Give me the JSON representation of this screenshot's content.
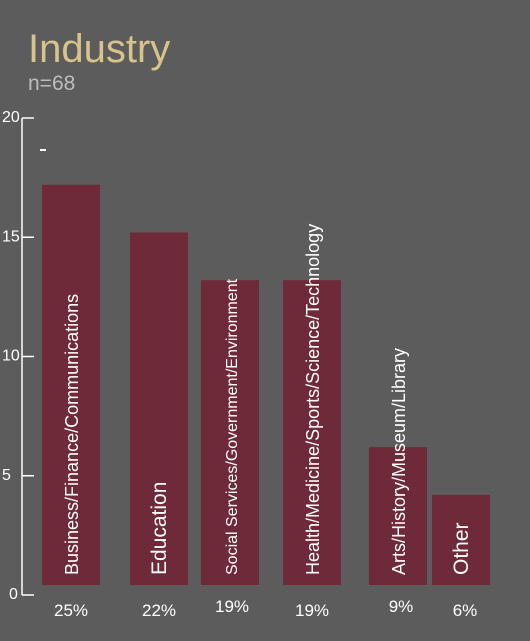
{
  "chart_data": {
    "type": "bar",
    "title": "Industry",
    "subtitle": "n=68",
    "categories": [
      "Business/Finance/Communications",
      "Education",
      "Social Services/Government/Environment",
      "Health/Medicine/Sports/Science/Technology",
      "Arts/History/Museum/Library",
      "Other"
    ],
    "values": [
      17.2,
      15.2,
      13.2,
      13.2,
      6.2,
      4.2
    ],
    "percent_labels": [
      "25%",
      "22%",
      "19%",
      "19%",
      "9%",
      "6%"
    ],
    "yticks": [
      "0",
      "5",
      "10",
      "15",
      "20"
    ],
    "ylim": [
      0,
      20
    ],
    "xlabel": "",
    "ylabel": "",
    "grid": false,
    "legend": "none",
    "colors": {
      "background": "#5c5c5c",
      "bar": "#6e2a38",
      "title": "#d8c48a",
      "subtitle": "#bdbdbd",
      "text": "#ffffff"
    }
  }
}
